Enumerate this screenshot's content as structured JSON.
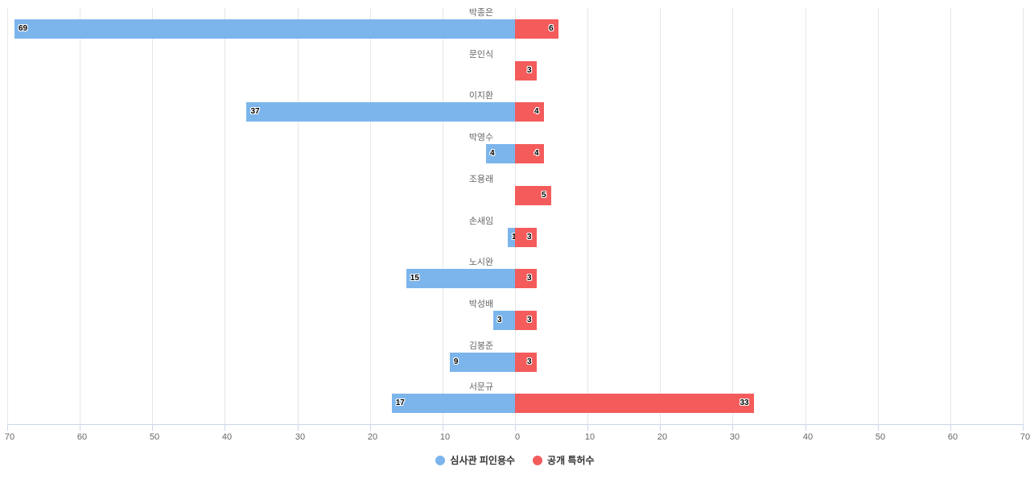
{
  "chart_data": {
    "type": "bar",
    "orientation": "horizontal",
    "layout": "population-pyramid (diverging)",
    "title": "",
    "xlabel": "",
    "ylabel": "",
    "categories": [
      "박종은",
      "문인식",
      "이지환",
      "박영수",
      "조용래",
      "손새임",
      "노시완",
      "박성배",
      "김봉준",
      "서문규"
    ],
    "series": [
      {
        "name": "심사관 피인용수",
        "color": "#7cb5ec",
        "side": "left",
        "values": [
          69,
          0,
          37,
          4,
          0,
          1,
          15,
          3,
          9,
          17
        ]
      },
      {
        "name": "공개 특허수",
        "color": "#f45b5b",
        "side": "right",
        "values": [
          6,
          3,
          4,
          4,
          5,
          3,
          3,
          3,
          3,
          33
        ]
      }
    ],
    "xlim": [
      -70,
      70
    ],
    "x_ticks": [
      "70",
      "60",
      "50",
      "40",
      "30",
      "20",
      "10",
      "0",
      "10",
      "20",
      "30",
      "40",
      "50",
      "60",
      "70"
    ],
    "grid": true,
    "legend_position": "bottom-center"
  },
  "legend": {
    "items": [
      {
        "label": "심사관 피인용수",
        "color": "#7cb5ec"
      },
      {
        "label": "공개 특허수",
        "color": "#f45b5b"
      }
    ]
  }
}
